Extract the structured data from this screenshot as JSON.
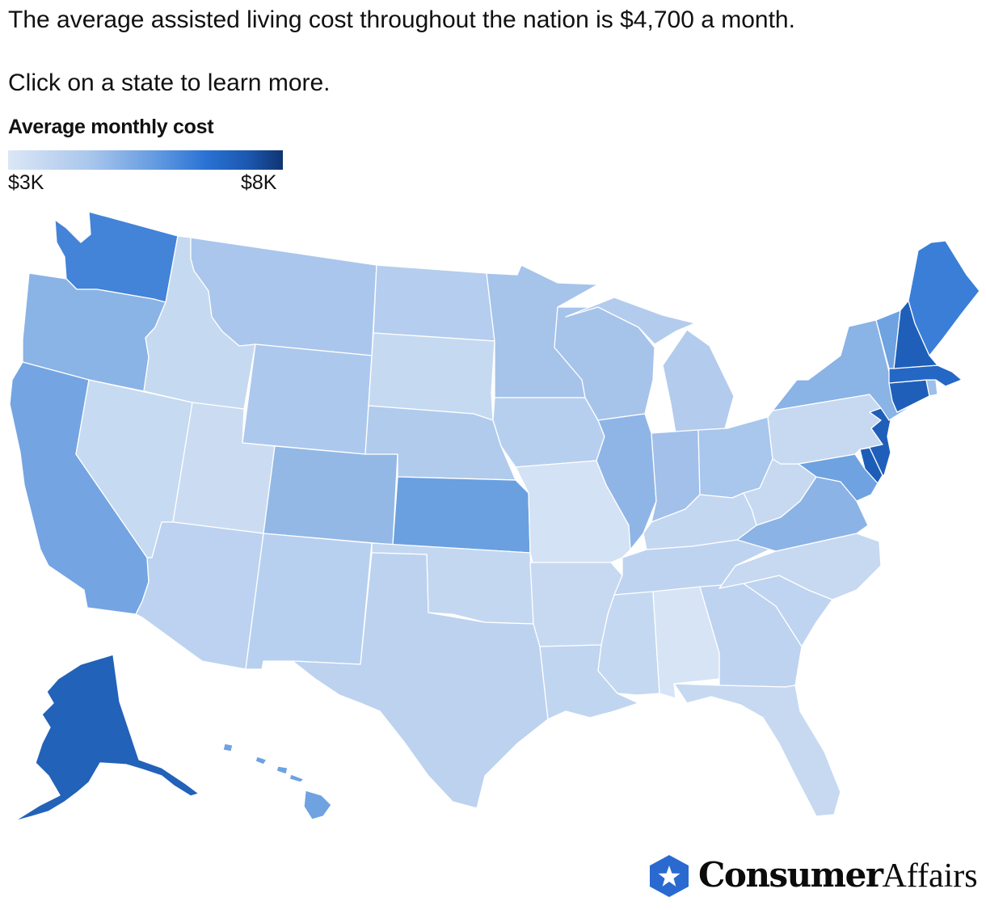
{
  "intro": "The average assisted living cost throughout the nation is $4,700 a month.",
  "cta": "Click on a state to learn more.",
  "legend": {
    "title": "Average monthly cost",
    "min_label": "$3K",
    "max_label": "$8K",
    "min_value": 3000,
    "max_value": 8000,
    "colors": [
      "#dbe7f6",
      "#a9c6ec",
      "#5f98e0",
      "#2a72d4",
      "#1b56ad",
      "#0f3470"
    ]
  },
  "brand": {
    "name_strong": "Consumer",
    "name_light": "Affairs",
    "accent": "#2a6ad0"
  },
  "states": [
    {
      "id": "WA",
      "name": "Washington",
      "color": "#4383d8"
    },
    {
      "id": "OR",
      "name": "Oregon",
      "color": "#8ab3e6"
    },
    {
      "id": "CA",
      "name": "California",
      "color": "#74a4e2"
    },
    {
      "id": "NV",
      "name": "Nevada",
      "color": "#c6daf1"
    },
    {
      "id": "ID",
      "name": "Idaho",
      "color": "#c5d9f1"
    },
    {
      "id": "MT",
      "name": "Montana",
      "color": "#aac6ec"
    },
    {
      "id": "WY",
      "name": "Wyoming",
      "color": "#adc8ed"
    },
    {
      "id": "UT",
      "name": "Utah",
      "color": "#cbdcf2"
    },
    {
      "id": "AZ",
      "name": "Arizona",
      "color": "#bcd2f0"
    },
    {
      "id": "CO",
      "name": "Colorado",
      "color": "#93b8e6"
    },
    {
      "id": "NM",
      "name": "New Mexico",
      "color": "#b8d0ef"
    },
    {
      "id": "ND",
      "name": "North Dakota",
      "color": "#b5cdee"
    },
    {
      "id": "SD",
      "name": "South Dakota",
      "color": "#c5d9f1"
    },
    {
      "id": "NE",
      "name": "Nebraska",
      "color": "#b1cbed"
    },
    {
      "id": "KS",
      "name": "Kansas",
      "color": "#6aa0e0"
    },
    {
      "id": "OK",
      "name": "Oklahoma",
      "color": "#c3d7f1"
    },
    {
      "id": "TX",
      "name": "Texas",
      "color": "#bcd2ef"
    },
    {
      "id": "MN",
      "name": "Minnesota",
      "color": "#a6c3ea"
    },
    {
      "id": "IA",
      "name": "Iowa",
      "color": "#b7cfef"
    },
    {
      "id": "MO",
      "name": "Missouri",
      "color": "#d3e2f4"
    },
    {
      "id": "AR",
      "name": "Arkansas",
      "color": "#c6d9f1"
    },
    {
      "id": "LA",
      "name": "Louisiana",
      "color": "#c0d5f0"
    },
    {
      "id": "WI",
      "name": "Wisconsin",
      "color": "#a6c3ea"
    },
    {
      "id": "IL",
      "name": "Illinois",
      "color": "#8fb5e6"
    },
    {
      "id": "MI",
      "name": "Michigan",
      "color": "#b3cced"
    },
    {
      "id": "IN",
      "name": "Indiana",
      "color": "#a2c0ea"
    },
    {
      "id": "OH",
      "name": "Ohio",
      "color": "#a9c6ec"
    },
    {
      "id": "KY",
      "name": "Kentucky",
      "color": "#c3d7f1"
    },
    {
      "id": "TN",
      "name": "Tennessee",
      "color": "#bed3f0"
    },
    {
      "id": "MS",
      "name": "Mississippi",
      "color": "#c4d8f1"
    },
    {
      "id": "AL",
      "name": "Alabama",
      "color": "#d6e4f5"
    },
    {
      "id": "GA",
      "name": "Georgia",
      "color": "#bed3f0"
    },
    {
      "id": "FL",
      "name": "Florida",
      "color": "#c6d9f1"
    },
    {
      "id": "SC",
      "name": "South Carolina",
      "color": "#bfd4f0"
    },
    {
      "id": "NC",
      "name": "North Carolina",
      "color": "#c6d9f1"
    },
    {
      "id": "VA",
      "name": "Virginia",
      "color": "#8cb3e6"
    },
    {
      "id": "WV",
      "name": "West Virginia",
      "color": "#c6d9f1"
    },
    {
      "id": "MD",
      "name": "Maryland",
      "color": "#6ea2e1"
    },
    {
      "id": "DE",
      "name": "Delaware",
      "color": "#1c5db8"
    },
    {
      "id": "PA",
      "name": "Pennsylvania",
      "color": "#c6d9f1"
    },
    {
      "id": "NJ",
      "name": "New Jersey",
      "color": "#1f5fb9"
    },
    {
      "id": "NY",
      "name": "New York",
      "color": "#8ab3e6"
    },
    {
      "id": "CT",
      "name": "Connecticut",
      "color": "#1f5fb9"
    },
    {
      "id": "RI",
      "name": "Rhode Island",
      "color": "#9ebfea"
    },
    {
      "id": "MA",
      "name": "Massachusetts",
      "color": "#2467c4"
    },
    {
      "id": "VT",
      "name": "Vermont",
      "color": "#6ea2e1"
    },
    {
      "id": "NH",
      "name": "New Hampshire",
      "color": "#1f5fb9"
    },
    {
      "id": "ME",
      "name": "Maine",
      "color": "#3a7ed8"
    },
    {
      "id": "AK",
      "name": "Alaska",
      "color": "#2262b8"
    },
    {
      "id": "HI",
      "name": "Hawaii",
      "color": "#6ea2e1"
    }
  ]
}
